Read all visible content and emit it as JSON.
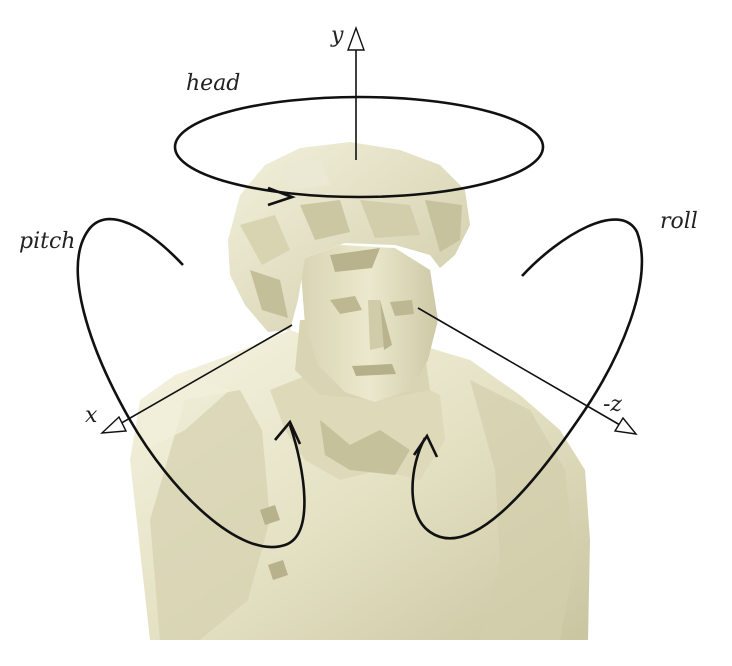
{
  "labels": {
    "y_axis": "y",
    "x_axis": "x",
    "z_axis": "-z",
    "head": "head",
    "pitch": "pitch",
    "roll": "roll"
  },
  "colors": {
    "bust_base": "#e6e3c6",
    "bust_light": "#f4f2de",
    "bust_shadow": "#c9c5a2",
    "bust_dark": "#b2ad87",
    "line": "#111111"
  }
}
